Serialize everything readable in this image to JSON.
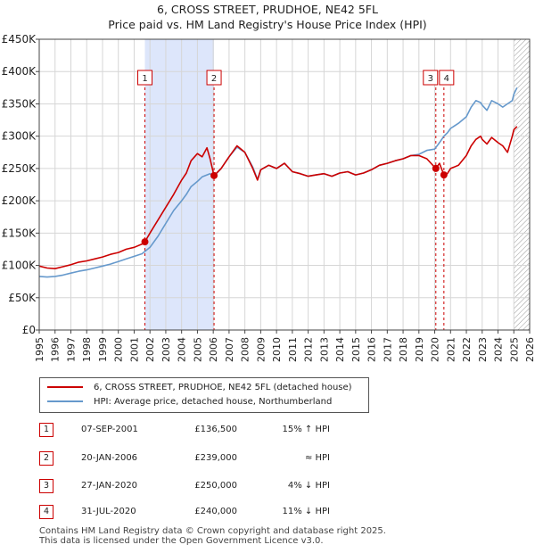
{
  "title": {
    "line1": "6, CROSS STREET, PRUDHOE, NE42 5FL",
    "line2": "Price paid vs. HM Land Registry's House Price Index (HPI)"
  },
  "colors": {
    "property": "#cc0000",
    "hpi": "#6699cc",
    "shade": "#dde6fb",
    "hatch": "#9a9a9a"
  },
  "chart_data": {
    "type": "line",
    "ylim": [
      0,
      450000
    ],
    "xlim": [
      1995,
      2026
    ],
    "y_ticks": [
      {
        "value": 0,
        "label": "£0"
      },
      {
        "value": 50000,
        "label": "£50K"
      },
      {
        "value": 100000,
        "label": "£100K"
      },
      {
        "value": 150000,
        "label": "£150K"
      },
      {
        "value": 200000,
        "label": "£200K"
      },
      {
        "value": 250000,
        "label": "£250K"
      },
      {
        "value": 300000,
        "label": "£300K"
      },
      {
        "value": 350000,
        "label": "£350K"
      },
      {
        "value": 400000,
        "label": "£400K"
      },
      {
        "value": 450000,
        "label": "£450K"
      }
    ],
    "x_ticks": [
      1995,
      1996,
      1997,
      1998,
      1999,
      2000,
      2001,
      2002,
      2003,
      2004,
      2005,
      2006,
      2007,
      2008,
      2009,
      2010,
      2011,
      2012,
      2013,
      2014,
      2015,
      2016,
      2017,
      2018,
      2019,
      2020,
      2021,
      2022,
      2023,
      2024,
      2025,
      2026
    ],
    "grid": true,
    "future_hatch_from": 2025.0,
    "shaded_spans": [
      [
        2001.68,
        2006.05
      ]
    ],
    "series": [
      {
        "name": "6, CROSS STREET, PRUDHOE, NE42 5FL (detached house)",
        "color": "#cc0000",
        "x": [
          1995.0,
          1995.5,
          1996.0,
          1996.5,
          1997.0,
          1997.5,
          1998.0,
          1998.5,
          1999.0,
          1999.5,
          2000.0,
          2000.5,
          2001.0,
          2001.5,
          2001.68,
          2002.0,
          2002.5,
          2003.0,
          2003.5,
          2004.0,
          2004.3,
          2004.6,
          2005.0,
          2005.3,
          2005.6,
          2005.8,
          2006.05,
          2006.5,
          2007.0,
          2007.5,
          2008.0,
          2008.5,
          2008.8,
          2009.0,
          2009.5,
          2010.0,
          2010.5,
          2011.0,
          2011.5,
          2012.0,
          2012.5,
          2013.0,
          2013.5,
          2014.0,
          2014.5,
          2015.0,
          2015.5,
          2016.0,
          2016.5,
          2017.0,
          2017.5,
          2018.0,
          2018.5,
          2019.0,
          2019.5,
          2020.07,
          2020.3,
          2020.58,
          2020.8,
          2021.0,
          2021.5,
          2022.0,
          2022.3,
          2022.6,
          2022.9,
          2023.0,
          2023.3,
          2023.6,
          2024.0,
          2024.3,
          2024.6,
          2024.9,
          2025.0,
          2025.2
        ],
        "y": [
          99000,
          96000,
          95000,
          98000,
          101000,
          105000,
          107000,
          110000,
          113000,
          117000,
          120000,
          125000,
          128000,
          133000,
          136500,
          150000,
          170000,
          190000,
          210000,
          232000,
          243000,
          262000,
          273000,
          268000,
          282000,
          265000,
          239000,
          250000,
          268000,
          285000,
          275000,
          250000,
          232000,
          248000,
          255000,
          250000,
          258000,
          245000,
          242000,
          238000,
          240000,
          242000,
          238000,
          243000,
          245000,
          240000,
          243000,
          248000,
          255000,
          258000,
          262000,
          265000,
          270000,
          270000,
          265000,
          250000,
          258000,
          240000,
          242000,
          250000,
          255000,
          270000,
          285000,
          295000,
          300000,
          295000,
          288000,
          298000,
          290000,
          285000,
          275000,
          300000,
          310000,
          315000
        ]
      },
      {
        "name": "HPI: Average price, detached house, Northumberland",
        "color": "#6699cc",
        "x": [
          1995.0,
          1995.5,
          1996.0,
          1996.5,
          1997.0,
          1997.5,
          1998.0,
          1998.5,
          1999.0,
          1999.5,
          2000.0,
          2000.5,
          2001.0,
          2001.5,
          2002.0,
          2002.5,
          2003.0,
          2003.5,
          2004.0,
          2004.3,
          2004.6,
          2005.0,
          2005.3,
          2005.6,
          2005.8,
          2006.05,
          2006.5,
          2007.0,
          2007.5,
          2008.0,
          2008.5,
          2008.8,
          2009.0,
          2009.5,
          2010.0,
          2010.5,
          2011.0,
          2011.5,
          2012.0,
          2012.5,
          2013.0,
          2013.5,
          2014.0,
          2014.5,
          2015.0,
          2015.5,
          2016.0,
          2016.5,
          2017.0,
          2017.5,
          2018.0,
          2018.5,
          2019.0,
          2019.5,
          2020.0,
          2020.3,
          2020.58,
          2020.8,
          2021.0,
          2021.5,
          2022.0,
          2022.3,
          2022.6,
          2022.9,
          2023.0,
          2023.3,
          2023.6,
          2024.0,
          2024.3,
          2024.6,
          2024.9,
          2025.0,
          2025.2
        ],
        "y": [
          83000,
          82000,
          83000,
          85000,
          88000,
          91000,
          93000,
          96000,
          99000,
          102000,
          106000,
          110000,
          114000,
          118000,
          128000,
          145000,
          165000,
          185000,
          200000,
          210000,
          222000,
          230000,
          237000,
          240000,
          242000,
          238000,
          250000,
          268000,
          283000,
          275000,
          252000,
          233000,
          248000,
          255000,
          250000,
          258000,
          245000,
          242000,
          238000,
          240000,
          242000,
          238000,
          243000,
          245000,
          240000,
          243000,
          248000,
          255000,
          258000,
          262000,
          265000,
          270000,
          272000,
          278000,
          280000,
          290000,
          300000,
          305000,
          312000,
          320000,
          330000,
          345000,
          355000,
          352000,
          348000,
          340000,
          355000,
          350000,
          345000,
          350000,
          355000,
          365000,
          375000
        ]
      }
    ],
    "markers": [
      {
        "label": "1",
        "date": "07-SEP-2001",
        "x": 2001.68,
        "value": 136500
      },
      {
        "label": "2",
        "date": "20-JAN-2006",
        "x": 2006.05,
        "value": 239000
      },
      {
        "label": "3",
        "date": "27-JAN-2020",
        "x": 2020.07,
        "value": 250000
      },
      {
        "label": "4",
        "date": "31-JUL-2020",
        "x": 2020.58,
        "value": 240000
      }
    ]
  },
  "legend": {
    "property": "6, CROSS STREET, PRUDHOE, NE42 5FL (detached house)",
    "hpi": "HPI: Average price, detached house, Northumberland"
  },
  "transactions": [
    {
      "num": "1",
      "date": "07-SEP-2001",
      "price": "£136,500",
      "hpi": "15% ↑ HPI"
    },
    {
      "num": "2",
      "date": "20-JAN-2006",
      "price": "£239,000",
      "hpi": "≈ HPI"
    },
    {
      "num": "3",
      "date": "27-JAN-2020",
      "price": "£250,000",
      "hpi": "4% ↓ HPI"
    },
    {
      "num": "4",
      "date": "31-JUL-2020",
      "price": "£240,000",
      "hpi": "11% ↓ HPI"
    }
  ],
  "footer": {
    "line1": "Contains HM Land Registry data © Crown copyright and database right 2025.",
    "line2": "This data is licensed under the Open Government Licence v3.0."
  }
}
